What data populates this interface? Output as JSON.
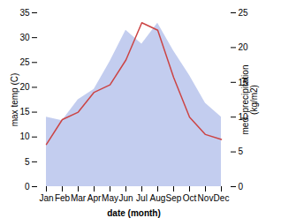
{
  "chart_data": {
    "type": "line",
    "categories": [
      "Jan",
      "Feb",
      "Mar",
      "Apr",
      "May",
      "Jun",
      "Jul",
      "Aug",
      "Sep",
      "Oct",
      "Nov",
      "Dec"
    ],
    "series": [
      {
        "type": "area",
        "axis": "y2",
        "color": "#aab8e8",
        "values": [
          10.0,
          9.5,
          12.5,
          14.0,
          18.0,
          22.5,
          20.5,
          23.5,
          19.5,
          16.0,
          12.0,
          10.0
        ]
      },
      {
        "type": "line",
        "color": "#cc4444",
        "values": [
          8.5,
          13.5,
          15.0,
          19.0,
          20.5,
          25.5,
          33.0,
          31.5,
          22.0,
          14.0,
          10.5,
          9.5
        ]
      }
    ],
    "xlabel": "date (month)",
    "ylabel": "max temp (C)",
    "y2label": "med. precipitation\n(kg/m2)",
    "ylim": [
      0,
      35
    ],
    "yticks": [
      0,
      5,
      10,
      15,
      20,
      25,
      30,
      35
    ],
    "y2lim": [
      0,
      25
    ],
    "y2ticks": [
      0,
      5,
      10,
      15,
      20,
      25
    ]
  }
}
